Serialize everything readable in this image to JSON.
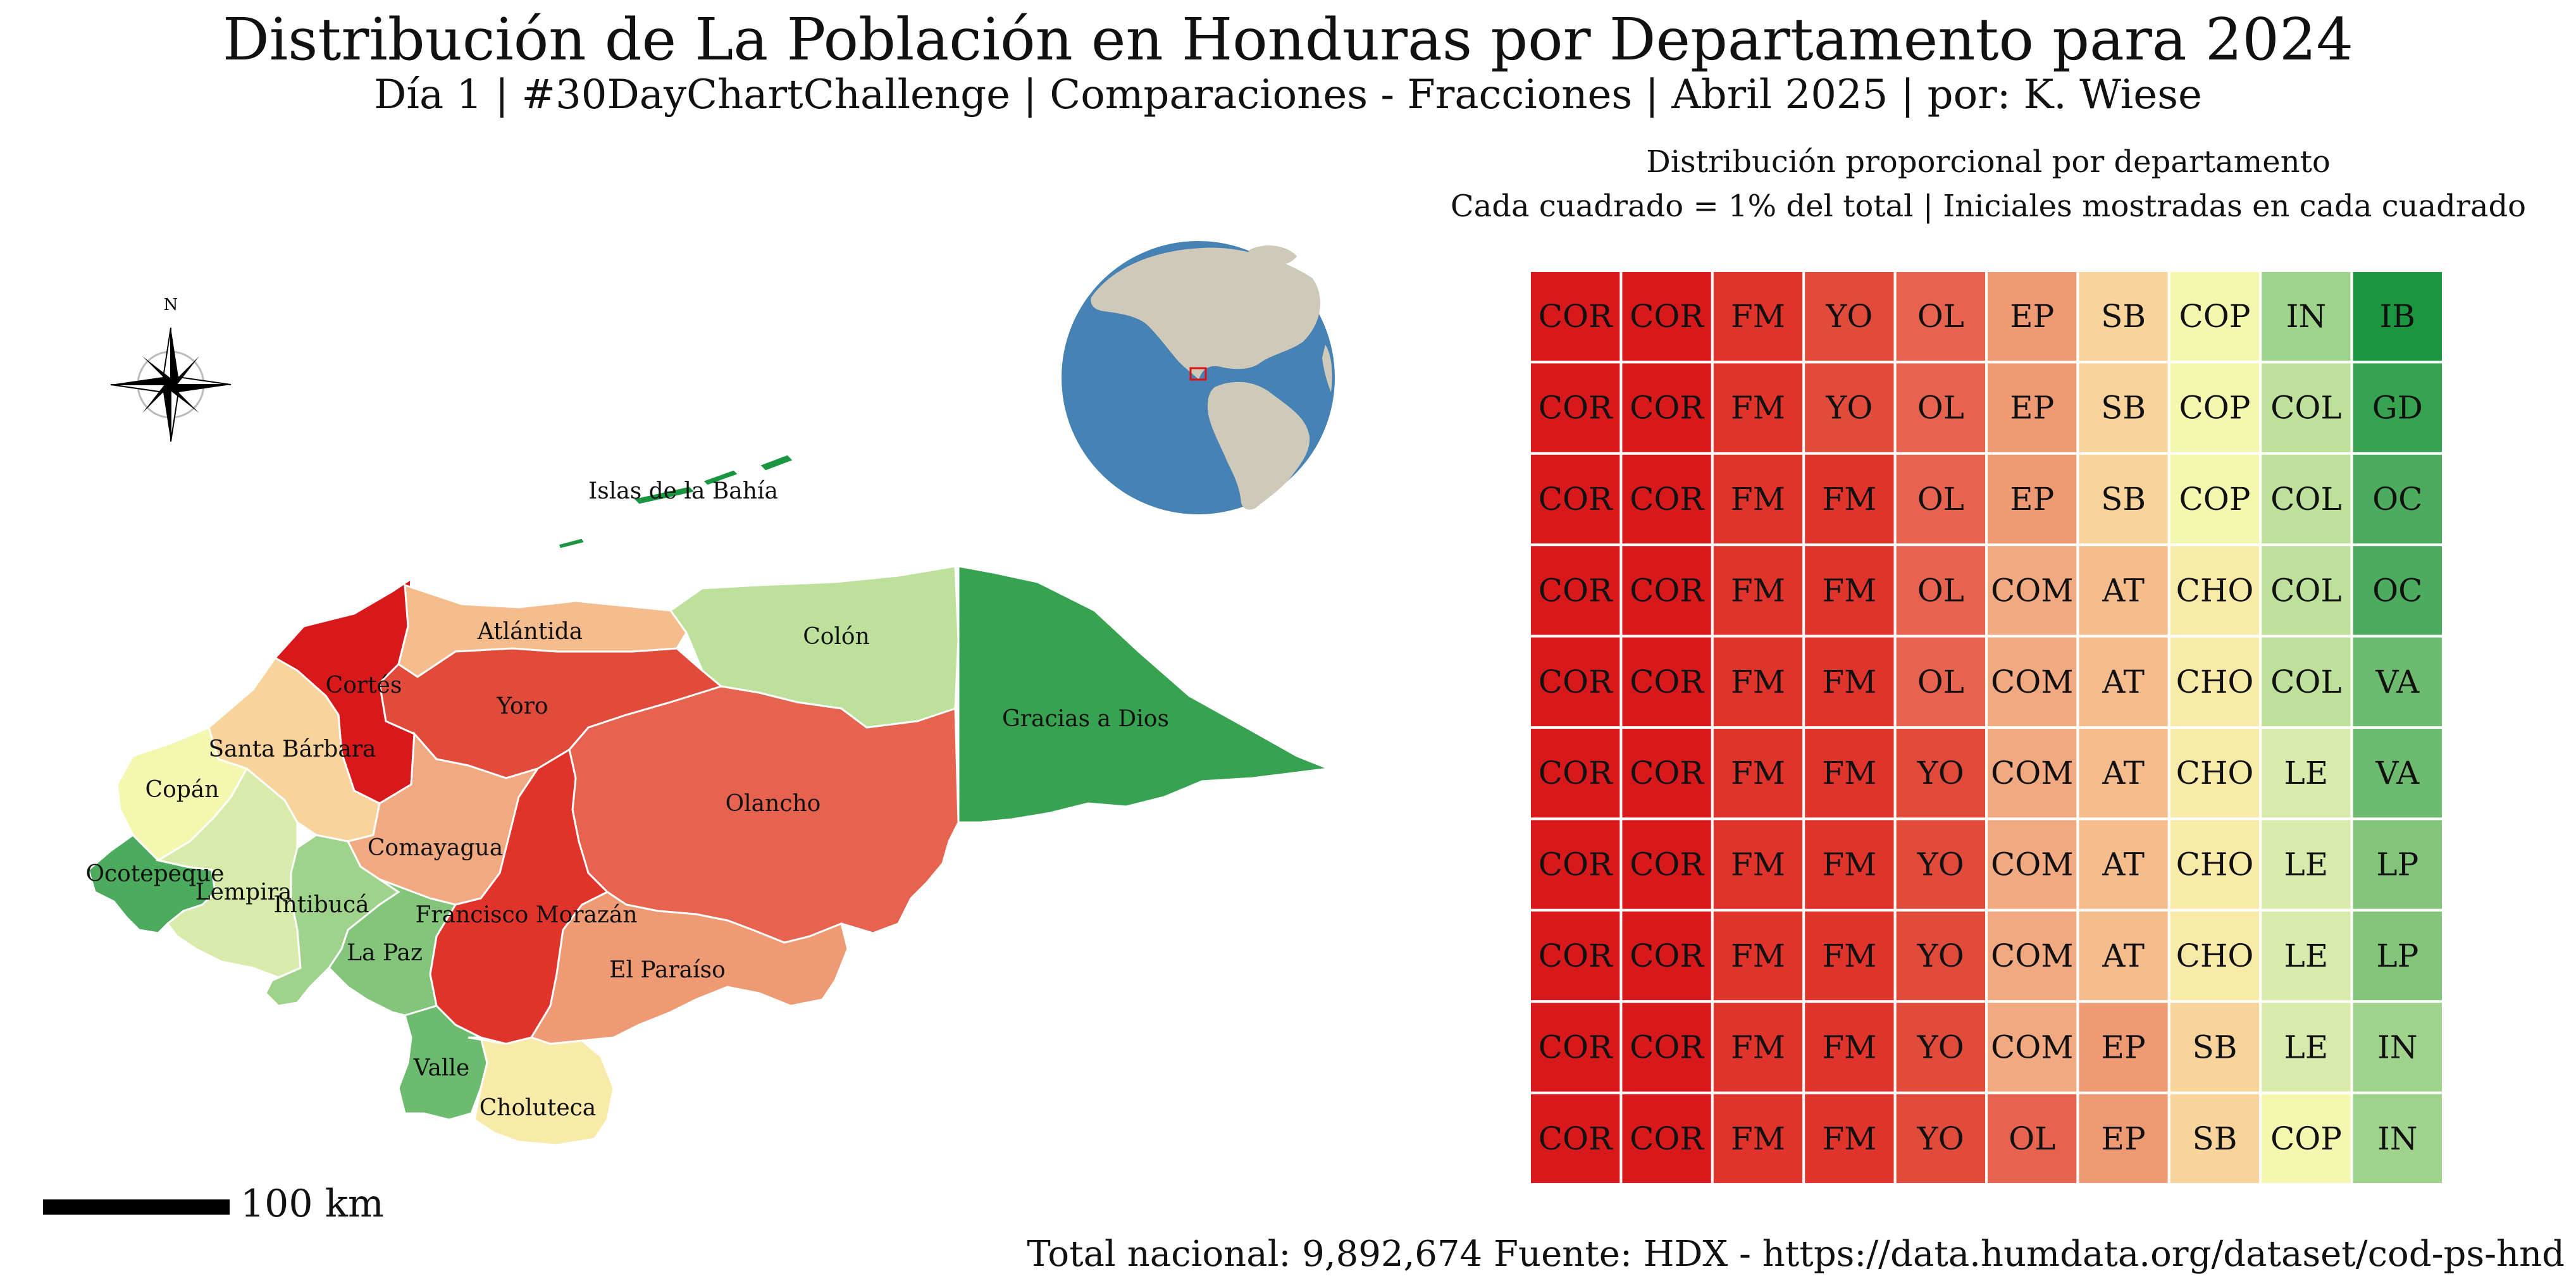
{
  "title": "Distribución de La Población en Honduras por Departamento para 2024",
  "subtitle": "Día 1 | #30DayChartChallenge | Comparaciones - Fracciones | Abril 2025 | por: K. Wiese",
  "waffle_title": "Distribución proporcional por departamento",
  "waffle_subtitle": "Cada cuadrado = 1% del total | Iniciales mostradas en cada cuadrado",
  "compass_label": "N",
  "scale_bar_label": "100 km",
  "footer_total": "Total nacional: 9,892,674",
  "footer_source": "Fuente: HDX - https://data.humdata.org/dataset/cod-ps-hnd",
  "colors": {
    "map_outline": "#ffffff",
    "globe_ocean": "#4682b4",
    "globe_land": "#cfc9b9",
    "globe_marker": "#e01010",
    "waffle_grid": "#ffffff"
  },
  "chart_data": {
    "type": "waffle",
    "rows": 10,
    "cols": 10,
    "unit": "1% del total",
    "grid": [
      [
        "COR",
        "COR",
        "FM",
        "YO",
        "OL",
        "EP",
        "SB",
        "COP",
        "IN",
        "IB"
      ],
      [
        "COR",
        "COR",
        "FM",
        "YO",
        "OL",
        "EP",
        "SB",
        "COP",
        "COL",
        "GD"
      ],
      [
        "COR",
        "COR",
        "FM",
        "FM",
        "OL",
        "EP",
        "SB",
        "COP",
        "COL",
        "OC"
      ],
      [
        "COR",
        "COR",
        "FM",
        "FM",
        "OL",
        "COM",
        "AT",
        "CHO",
        "COL",
        "OC"
      ],
      [
        "COR",
        "COR",
        "FM",
        "FM",
        "OL",
        "COM",
        "AT",
        "CHO",
        "COL",
        "VA"
      ],
      [
        "COR",
        "COR",
        "FM",
        "FM",
        "YO",
        "COM",
        "AT",
        "CHO",
        "LE",
        "VA"
      ],
      [
        "COR",
        "COR",
        "FM",
        "FM",
        "YO",
        "COM",
        "AT",
        "CHO",
        "LE",
        "LP"
      ],
      [
        "COR",
        "COR",
        "FM",
        "FM",
        "YO",
        "COM",
        "AT",
        "CHO",
        "LE",
        "LP"
      ],
      [
        "COR",
        "COR",
        "FM",
        "FM",
        "YO",
        "COM",
        "EP",
        "SB",
        "LE",
        "IN"
      ],
      [
        "COR",
        "COR",
        "FM",
        "FM",
        "YO",
        "OL",
        "EP",
        "SB",
        "COP",
        "IN"
      ]
    ],
    "colors": {
      "COR": "#d7191c",
      "FM": "#e0332c",
      "YO": "#e14b3b",
      "OL": "#e5634f",
      "EP": "#ee9a75",
      "COM": "#f0a980",
      "AT": "#f5bd8e",
      "SB": "#f8d49c",
      "CHO": "#f8eaa8",
      "COP": "#f3f7b0",
      "LE": "#d8ebaa",
      "COL": "#bde19a",
      "IN": "#9fd28a",
      "LP": "#83c57a",
      "VA": "#6cbb6e",
      "OC": "#4cab5c",
      "GD": "#37a350",
      "IB": "#1a9641"
    }
  },
  "map": {
    "departments": [
      {
        "name": "Islas de la Bahía",
        "color": "#1a9641"
      },
      {
        "name": "Atlántida",
        "color": "#f5bd8e"
      },
      {
        "name": "Colón",
        "color": "#bde19a"
      },
      {
        "name": "Cortés",
        "color": "#d7191c"
      },
      {
        "name": "Yoro",
        "color": "#e14b3b"
      },
      {
        "name": "Gracias a Dios",
        "color": "#37a350"
      },
      {
        "name": "Santa Bárbara",
        "color": "#f8d49c"
      },
      {
        "name": "Copán",
        "color": "#f3f7b0"
      },
      {
        "name": "Olancho",
        "color": "#e5634f"
      },
      {
        "name": "Comayagua",
        "color": "#f0a980"
      },
      {
        "name": "Ocotepeque",
        "color": "#4cab5c"
      },
      {
        "name": "Lempira",
        "color": "#d8ebaa"
      },
      {
        "name": "Intibucá",
        "color": "#9fd28a"
      },
      {
        "name": "Francisco Morazán",
        "color": "#e0332c"
      },
      {
        "name": "La Paz",
        "color": "#83c57a"
      },
      {
        "name": "El Paraíso",
        "color": "#ee9a75"
      },
      {
        "name": "Valle",
        "color": "#6cbb6e"
      },
      {
        "name": "Choluteca",
        "color": "#f8eaa8"
      }
    ]
  }
}
